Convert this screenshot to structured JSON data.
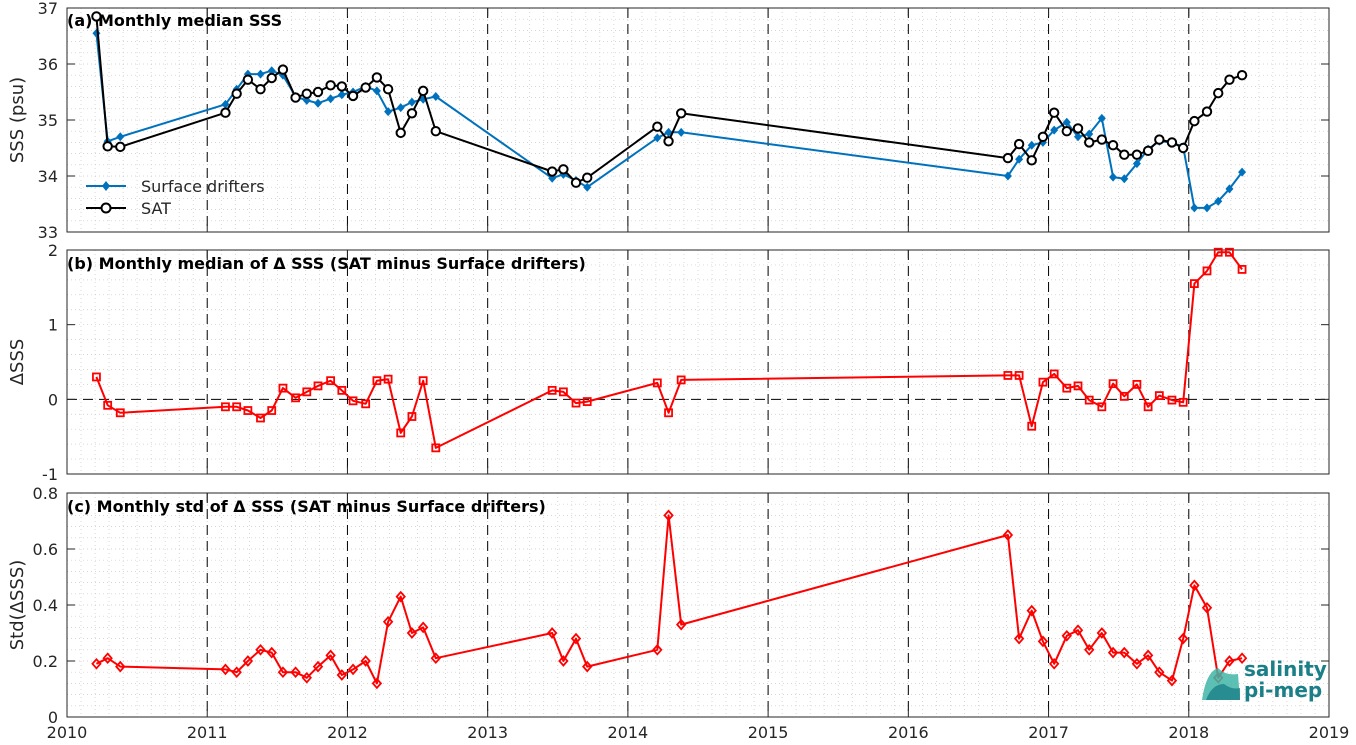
{
  "colors": {
    "drifters": "#0072BD",
    "sat": "#000000",
    "delta": "#FF0000",
    "logo": "#1a7f87"
  },
  "logo": {
    "line1": "salinity",
    "line2": "pi-mep"
  },
  "chart_data": [
    {
      "type": "line",
      "title": "(a) Monthly median SSS",
      "ylabel": "SSS (psu)",
      "xlim": [
        2010,
        2019
      ],
      "ylim": [
        33,
        37
      ],
      "yticks": [
        33,
        34,
        35,
        36,
        37
      ],
      "xticks": [
        2010,
        2011,
        2012,
        2013,
        2014,
        2015,
        2016,
        2017,
        2018,
        2019
      ],
      "grid": true,
      "legend": "left",
      "series": [
        {
          "name": "Surface drifters",
          "marker": "diamond",
          "x": [
            2010.21,
            2010.29,
            2010.38,
            2011.13,
            2011.21,
            2011.29,
            2011.38,
            2011.46,
            2011.54,
            2011.63,
            2011.71,
            2011.79,
            2011.88,
            2011.96,
            2012.04,
            2012.13,
            2012.21,
            2012.29,
            2012.38,
            2012.46,
            2012.54,
            2012.63,
            2013.46,
            2013.54,
            2013.63,
            2013.71,
            2014.21,
            2014.29,
            2014.38,
            2016.71,
            2016.79,
            2016.88,
            2016.96,
            2017.04,
            2017.13,
            2017.21,
            2017.29,
            2017.38,
            2017.46,
            2017.54,
            2017.63,
            2017.71,
            2017.79,
            2017.88,
            2017.96,
            2018.04,
            2018.13,
            2018.21,
            2018.29,
            2018.38
          ],
          "y": [
            36.55,
            34.62,
            34.7,
            35.28,
            35.55,
            35.82,
            35.82,
            35.88,
            35.8,
            35.42,
            35.35,
            35.3,
            35.38,
            35.45,
            35.5,
            35.6,
            35.52,
            35.15,
            35.22,
            35.32,
            35.37,
            35.42,
            33.96,
            34.03,
            33.92,
            33.8,
            34.68,
            34.78,
            34.78,
            34.0,
            34.3,
            34.55,
            34.6,
            34.82,
            34.96,
            34.7,
            34.75,
            35.03,
            33.98,
            33.95,
            34.22,
            34.48,
            34.62,
            34.6,
            34.52,
            33.43,
            33.43,
            33.55,
            33.77,
            34.07
          ]
        },
        {
          "name": "SAT",
          "marker": "circle",
          "x": [
            2010.21,
            2010.29,
            2010.38,
            2011.13,
            2011.21,
            2011.29,
            2011.38,
            2011.46,
            2011.54,
            2011.63,
            2011.71,
            2011.79,
            2011.88,
            2011.96,
            2012.04,
            2012.13,
            2012.21,
            2012.29,
            2012.38,
            2012.46,
            2012.54,
            2012.63,
            2013.46,
            2013.54,
            2013.63,
            2013.71,
            2014.21,
            2014.29,
            2014.38,
            2016.71,
            2016.79,
            2016.88,
            2016.96,
            2017.04,
            2017.13,
            2017.21,
            2017.29,
            2017.38,
            2017.46,
            2017.54,
            2017.63,
            2017.71,
            2017.79,
            2017.88,
            2017.96,
            2018.04,
            2018.13,
            2018.21,
            2018.29,
            2018.38
          ],
          "y": [
            36.85,
            34.53,
            34.52,
            35.13,
            35.47,
            35.72,
            35.55,
            35.75,
            35.9,
            35.4,
            35.47,
            35.5,
            35.62,
            35.6,
            35.43,
            35.58,
            35.76,
            35.55,
            34.77,
            35.12,
            35.52,
            34.8,
            34.08,
            34.12,
            33.88,
            33.97,
            34.88,
            34.62,
            35.12,
            34.32,
            34.57,
            34.28,
            34.7,
            35.13,
            34.8,
            34.85,
            34.6,
            34.65,
            34.55,
            34.38,
            34.38,
            34.45,
            34.65,
            34.6,
            34.5,
            34.98,
            35.15,
            35.48,
            35.72,
            35.8
          ]
        }
      ]
    },
    {
      "type": "line",
      "title": "(b) Monthly median of Δ SSS (SAT minus Surface drifters)",
      "ylabel": "ΔSSS",
      "xlim": [
        2010,
        2019
      ],
      "ylim": [
        -1,
        2
      ],
      "yticks": [
        -1,
        0,
        1,
        2
      ],
      "grid": true,
      "series": [
        {
          "name": "",
          "marker": "square",
          "x": [
            2010.21,
            2010.29,
            2010.38,
            2011.13,
            2011.21,
            2011.29,
            2011.38,
            2011.46,
            2011.54,
            2011.63,
            2011.71,
            2011.79,
            2011.88,
            2011.96,
            2012.04,
            2012.13,
            2012.21,
            2012.29,
            2012.38,
            2012.46,
            2012.54,
            2012.63,
            2013.46,
            2013.54,
            2013.63,
            2013.71,
            2014.21,
            2014.29,
            2014.38,
            2016.71,
            2016.79,
            2016.88,
            2016.96,
            2017.04,
            2017.13,
            2017.21,
            2017.29,
            2017.38,
            2017.46,
            2017.54,
            2017.63,
            2017.71,
            2017.79,
            2017.88,
            2017.96,
            2018.04,
            2018.13,
            2018.21,
            2018.29,
            2018.38
          ],
          "y": [
            0.3,
            -0.08,
            -0.18,
            -0.1,
            -0.1,
            -0.15,
            -0.25,
            -0.15,
            0.15,
            0.02,
            0.1,
            0.18,
            0.25,
            0.12,
            -0.02,
            -0.06,
            0.25,
            0.27,
            -0.45,
            -0.23,
            0.25,
            -0.65,
            0.12,
            0.1,
            -0.05,
            -0.03,
            0.22,
            -0.18,
            0.26,
            0.32,
            0.32,
            -0.36,
            0.23,
            0.34,
            0.15,
            0.18,
            -0.01,
            -0.1,
            0.21,
            0.04,
            0.2,
            -0.1,
            0.05,
            -0.01,
            -0.04,
            1.55,
            1.72,
            1.97,
            1.97,
            1.74
          ]
        }
      ]
    },
    {
      "type": "line",
      "title": "(c) Monthly std of Δ SSS (SAT minus Surface drifters)",
      "ylabel": "Std(ΔSSS)",
      "xlim": [
        2010,
        2019
      ],
      "ylim": [
        0,
        0.8
      ],
      "yticks": [
        0,
        0.2,
        0.4,
        0.6,
        0.8
      ],
      "grid": true,
      "series": [
        {
          "name": "",
          "marker": "diamond",
          "x": [
            2010.21,
            2010.29,
            2010.38,
            2011.13,
            2011.21,
            2011.29,
            2011.38,
            2011.46,
            2011.54,
            2011.63,
            2011.71,
            2011.79,
            2011.88,
            2011.96,
            2012.04,
            2012.13,
            2012.21,
            2012.29,
            2012.38,
            2012.46,
            2012.54,
            2012.63,
            2013.46,
            2013.54,
            2013.63,
            2013.71,
            2014.21,
            2014.29,
            2014.38,
            2016.71,
            2016.79,
            2016.88,
            2016.96,
            2017.04,
            2017.13,
            2017.21,
            2017.29,
            2017.38,
            2017.46,
            2017.54,
            2017.63,
            2017.71,
            2017.79,
            2017.88,
            2017.96,
            2018.04,
            2018.13,
            2018.21,
            2018.29,
            2018.38
          ],
          "y": [
            0.19,
            0.21,
            0.18,
            0.17,
            0.16,
            0.2,
            0.24,
            0.23,
            0.16,
            0.16,
            0.14,
            0.18,
            0.22,
            0.15,
            0.17,
            0.2,
            0.12,
            0.34,
            0.43,
            0.3,
            0.32,
            0.21,
            0.3,
            0.2,
            0.28,
            0.18,
            0.24,
            0.72,
            0.33,
            0.65,
            0.28,
            0.38,
            0.27,
            0.19,
            0.29,
            0.31,
            0.24,
            0.3,
            0.23,
            0.23,
            0.19,
            0.22,
            0.16,
            0.13,
            0.28,
            0.47,
            0.39,
            0.14,
            0.2,
            0.21
          ]
        }
      ]
    }
  ]
}
